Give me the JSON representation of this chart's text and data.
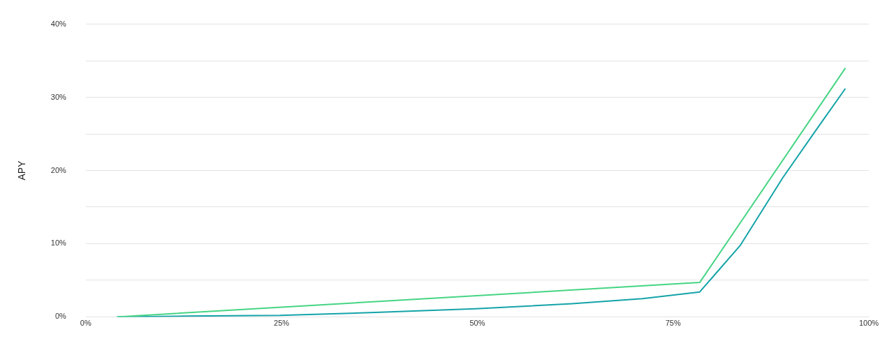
{
  "chart_data": {
    "type": "line",
    "ylabel": "APY",
    "xlim": [
      0,
      100
    ],
    "xticks": [
      {
        "value": 0,
        "label": "0%"
      },
      {
        "value": 25,
        "label": "25%"
      },
      {
        "value": 50,
        "label": "50%"
      },
      {
        "value": 75,
        "label": "75%"
      },
      {
        "value": 100,
        "label": "100%"
      }
    ],
    "ylim": [
      0,
      40
    ],
    "yticks": [
      {
        "value": 0,
        "label": "0%"
      },
      {
        "value": 5,
        "label": null
      },
      {
        "value": 10,
        "label": "10%"
      },
      {
        "value": 15,
        "label": null
      },
      {
        "value": 20,
        "label": "20%"
      },
      {
        "value": 25,
        "label": null
      },
      {
        "value": 30,
        "label": "30%"
      },
      {
        "value": 35,
        "label": null
      },
      {
        "value": 40,
        "label": "40%"
      }
    ],
    "grid": "y",
    "legend": false,
    "marker": "none",
    "line_style": "solid",
    "series": [
      {
        "color": "#45d483",
        "x": [
          4,
          78.4,
          97
        ],
        "values": [
          0,
          4.7,
          34
        ]
      },
      {
        "color": "#14a3a8",
        "x": [
          4,
          12.7,
          24.8,
          37,
          49.8,
          62.1,
          71.1,
          78.4,
          83.6,
          89,
          93.5,
          97
        ],
        "values": [
          0,
          0.1,
          0.2,
          0.6,
          1.1,
          1.8,
          2.5,
          3.4,
          9.8,
          19,
          25.9,
          31.2
        ]
      }
    ]
  }
}
